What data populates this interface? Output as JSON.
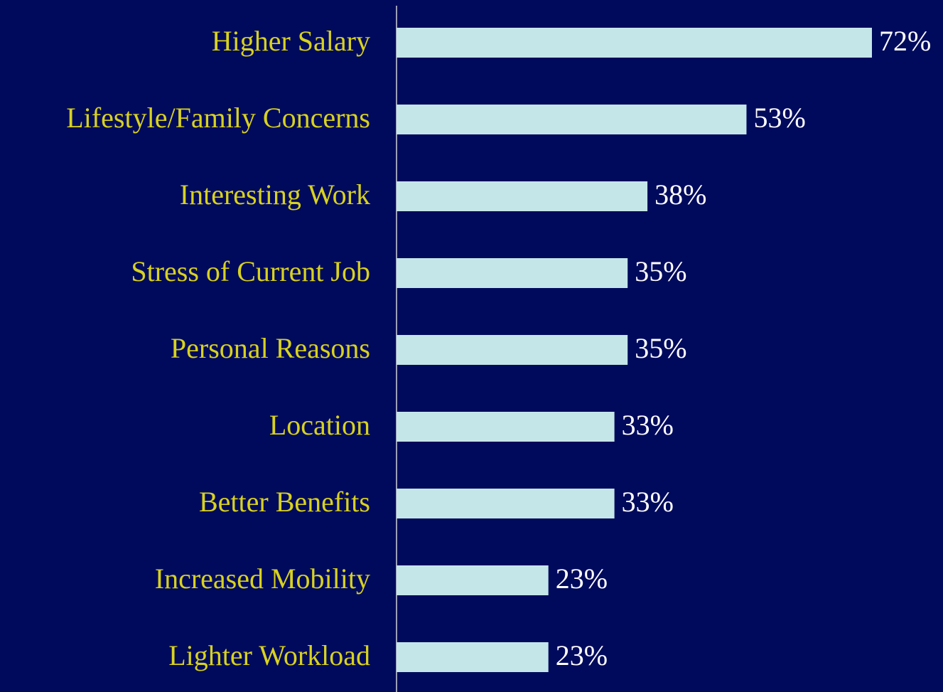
{
  "chart_data": {
    "type": "bar",
    "orientation": "horizontal",
    "categories": [
      "Higher Salary",
      "Lifestyle/Family Concerns",
      "Interesting Work",
      "Stress of Current Job",
      "Personal Reasons",
      "Location",
      "Better Benefits",
      "Increased Mobility",
      "Lighter Workload"
    ],
    "values": [
      72,
      53,
      38,
      35,
      35,
      33,
      33,
      23,
      23
    ],
    "value_labels": [
      "72%",
      "53%",
      "38%",
      "35%",
      "35%",
      "33%",
      "33%",
      "23%",
      "23%"
    ],
    "color": "#c5e6e8"
  }
}
